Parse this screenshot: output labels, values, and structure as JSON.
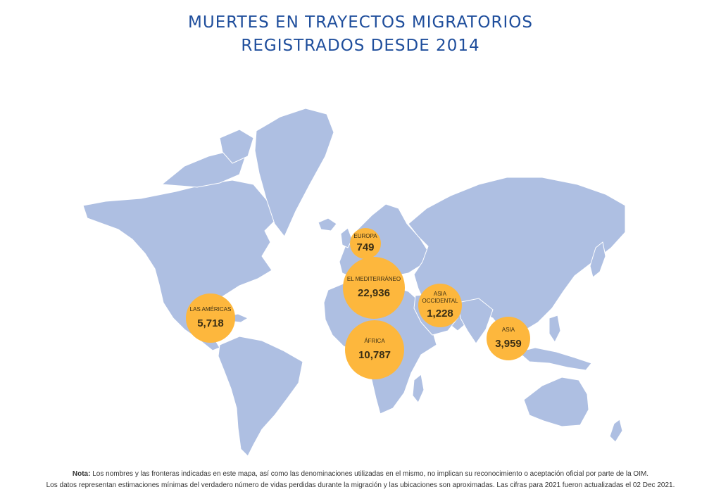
{
  "header": {
    "title_line1": "MUERTES EN TRAYECTOS MIGRATORIOS",
    "title_line2": "REGISTRADOS DESDE 2014"
  },
  "regions": [
    {
      "id": "las-americas",
      "name": "LAS AMÉRICAS",
      "value": "5,718",
      "size": 5718
    },
    {
      "id": "europa",
      "name": "EUROPA",
      "value": "749",
      "size": 749
    },
    {
      "id": "el-mediterraneo",
      "name": "EL MEDITERRÁNEO",
      "value": "22,936",
      "size": 22936
    },
    {
      "id": "africa",
      "name": "ÁFRICA",
      "value": "10,787",
      "size": 10787
    },
    {
      "id": "asia-occidental",
      "name": "ASIA OCCIDENTAL",
      "value": "1,228",
      "size": 1228
    },
    {
      "id": "asia",
      "name": "ASIA",
      "value": "3,959",
      "size": 3959
    }
  ],
  "colors": {
    "land": "#aebfe2",
    "bubble": "#fdb73d",
    "title": "#1f4e9c"
  },
  "notes": {
    "label": "Nota:",
    "line1": " Los nombres y las fronteras indicadas en este mapa, así como las denominaciones utilizadas en el mismo, no implican su reconocimiento o aceptación oficial por parte de la OIM.",
    "line2": "Los datos representan estimaciones mínimas del verdadero número de vidas perdidas durante la migración y las ubicaciones son aproximadas. Las cifras para 2021 fueron actualizadas el 02 Dec 2021."
  }
}
